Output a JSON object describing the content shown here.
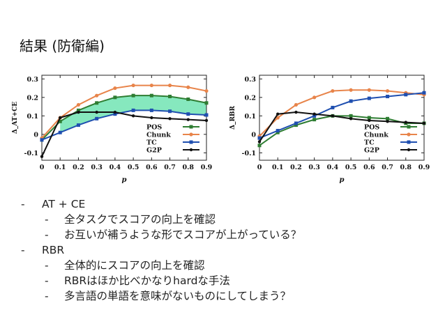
{
  "slide": {
    "title": "結果 (防衛編)"
  },
  "chart_data": [
    {
      "type": "line",
      "ylabel": "Δ_AT+CE",
      "xlabel": "p",
      "x": [
        0,
        0.1,
        0.2,
        0.3,
        0.4,
        0.5,
        0.6,
        0.7,
        0.8,
        0.9
      ],
      "xticks": [
        "0",
        "0.1",
        "0.2",
        "0.3",
        "0.4",
        "0.5",
        "0.6",
        "0.7",
        "0.8",
        "0.9"
      ],
      "yticks": [
        "-0.1",
        "0",
        "0.1",
        "0.2",
        "0.3"
      ],
      "xlim": [
        0,
        0.9
      ],
      "ylim": [
        -0.14,
        0.32
      ],
      "legend_position": "bottom-right",
      "shaded_region": {
        "between": [
          "POS",
          "TC"
        ],
        "color": "#5ee0a8"
      },
      "series": [
        {
          "name": "POS",
          "color": "#2e7d32",
          "marker": "square",
          "values": [
            -0.03,
            0.07,
            0.13,
            0.17,
            0.2,
            0.21,
            0.21,
            0.205,
            0.19,
            0.17
          ]
        },
        {
          "name": "Chunk",
          "color": "#e8844a",
          "marker": "circle",
          "values": [
            -0.02,
            0.09,
            0.16,
            0.21,
            0.25,
            0.265,
            0.265,
            0.265,
            0.255,
            0.235
          ]
        },
        {
          "name": "TC",
          "color": "#1f4fb0",
          "marker": "square",
          "values": [
            -0.03,
            0.01,
            0.05,
            0.085,
            0.11,
            0.13,
            0.13,
            0.125,
            0.11,
            0.105
          ]
        },
        {
          "name": "G2P",
          "color": "#111111",
          "marker": "diamond",
          "values": [
            -0.12,
            0.09,
            0.12,
            0.12,
            0.12,
            0.1,
            0.09,
            0.085,
            0.08,
            0.075
          ]
        }
      ]
    },
    {
      "type": "line",
      "ylabel": "Δ_RBR",
      "xlabel": "p",
      "x": [
        0,
        0.1,
        0.2,
        0.3,
        0.4,
        0.5,
        0.6,
        0.7,
        0.8,
        0.9
      ],
      "xticks": [
        "0",
        "0.1",
        "0.2",
        "0.3",
        "0.4",
        "0.5",
        "0.6",
        "0.7",
        "0.8",
        "0.9"
      ],
      "yticks": [
        "-0.1",
        "0",
        "0.1",
        "0.2",
        "0.3"
      ],
      "xlim": [
        0,
        0.9
      ],
      "ylim": [
        -0.14,
        0.32
      ],
      "legend_position": "bottom-right",
      "series": [
        {
          "name": "POS",
          "color": "#2e7d32",
          "marker": "square",
          "values": [
            -0.06,
            0.01,
            0.05,
            0.08,
            0.1,
            0.1,
            0.09,
            0.085,
            0.06,
            0.06
          ]
        },
        {
          "name": "Chunk",
          "color": "#e8844a",
          "marker": "circle",
          "values": [
            -0.01,
            0.09,
            0.16,
            0.2,
            0.235,
            0.24,
            0.24,
            0.235,
            0.225,
            0.215
          ]
        },
        {
          "name": "TC",
          "color": "#1f4fb0",
          "marker": "square",
          "values": [
            -0.02,
            0.02,
            0.06,
            0.1,
            0.145,
            0.18,
            0.195,
            0.205,
            0.215,
            0.225
          ]
        },
        {
          "name": "G2P",
          "color": "#111111",
          "marker": "diamond",
          "values": [
            -0.04,
            0.11,
            0.12,
            0.11,
            0.1,
            0.085,
            0.075,
            0.07,
            0.065,
            0.06
          ]
        }
      ]
    }
  ],
  "bullets": [
    {
      "level": 1,
      "text": "AT + CE"
    },
    {
      "level": 2,
      "text": "全タスクでスコアの向上を確認"
    },
    {
      "level": 2,
      "text": "お互いが補うような形でスコアが上がっている？"
    },
    {
      "level": 1,
      "text": "RBR"
    },
    {
      "level": 2,
      "text": "全体的にスコアの向上を確認"
    },
    {
      "level": 2,
      "text": "RBRはほか比べかなりhardな手法"
    },
    {
      "level": 2,
      "text": "多言語の単語を意味がないものにしてしまう？"
    }
  ]
}
